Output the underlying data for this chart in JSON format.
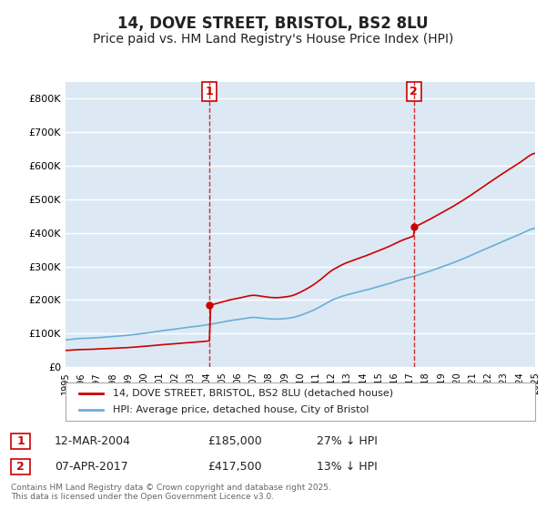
{
  "title": "14, DOVE STREET, BRISTOL, BS2 8LU",
  "subtitle": "Price paid vs. HM Land Registry's House Price Index (HPI)",
  "title_fontsize": 12,
  "subtitle_fontsize": 10,
  "ylabel": "",
  "background_color": "#ffffff",
  "plot_bg_color": "#dce9f5",
  "grid_color": "#ffffff",
  "hpi_color": "#6aaed6",
  "price_color": "#cc0000",
  "purchase1_date": "12-MAR-2004",
  "purchase1_price": 185000,
  "purchase1_hpi_diff": "27% ↓ HPI",
  "purchase2_date": "07-APR-2017",
  "purchase2_price": 417500,
  "purchase2_hpi_diff": "13% ↓ HPI",
  "legend_label1": "14, DOVE STREET, BRISTOL, BS2 8LU (detached house)",
  "legend_label2": "HPI: Average price, detached house, City of Bristol",
  "footnote": "Contains HM Land Registry data © Crown copyright and database right 2025.\nThis data is licensed under the Open Government Licence v3.0.",
  "ylim": [
    0,
    850000
  ],
  "yticks": [
    0,
    100000,
    200000,
    300000,
    400000,
    500000,
    600000,
    700000,
    800000
  ],
  "ytick_labels": [
    "£0",
    "£100K",
    "£200K",
    "£300K",
    "£400K",
    "£500K",
    "£600K",
    "£700K",
    "£800K"
  ],
  "xstart": 1995,
  "xend": 2025
}
